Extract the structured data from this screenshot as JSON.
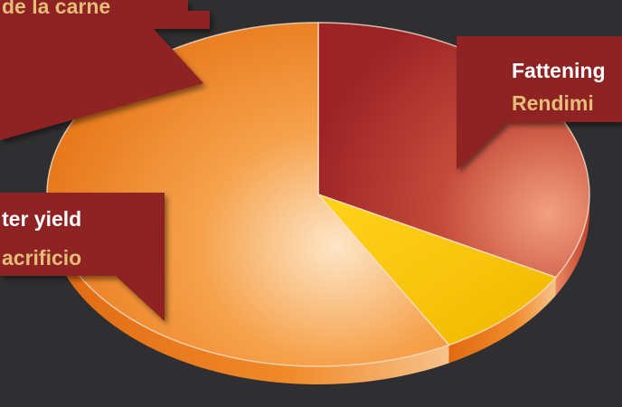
{
  "chart_data": {
    "type": "pie",
    "title": "",
    "slices": [
      {
        "label_en": "Fattening",
        "label_es": "Rendimi",
        "value": 33,
        "color": "#a6282a"
      },
      {
        "label_en": "",
        "label_es": "de la carne",
        "value": 9,
        "color": "#f7c600"
      },
      {
        "label_en": "ter yield",
        "label_es": "acrificio",
        "value": 58,
        "color": "#f0891f"
      }
    ],
    "colors": {
      "background": "#2f2f31",
      "label_box": "#8f2024",
      "label_en": "#ffffff",
      "label_es": "#e6bd78"
    }
  }
}
